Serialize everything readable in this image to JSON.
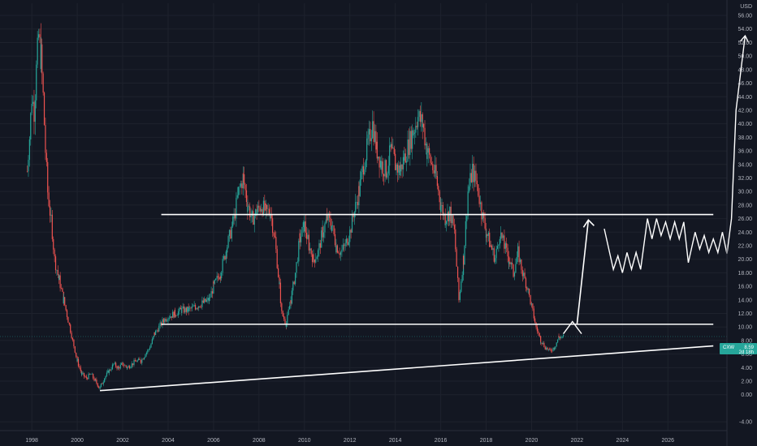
{
  "chart_data": {
    "type": "candlestick",
    "ticker": "CXW",
    "currency": "USD",
    "last_price": "8.59",
    "countdown": "2d 18h",
    "colors": {
      "up": "#26a69a",
      "down": "#ef5350",
      "background": "#131722",
      "grid": "#1e222d",
      "text": "#b2b5be",
      "drawing": "#ffffff",
      "tag": "#26a69a"
    },
    "grid": true,
    "xlim": [
      1996.6,
      2028.6
    ],
    "ylim": [
      -5.3,
      57.8
    ],
    "y_ticks": [
      "-4.00",
      "0.00",
      "2.00",
      "4.00",
      "6.00",
      "8.00",
      "10.00",
      "12.00",
      "14.00",
      "16.00",
      "18.00",
      "20.00",
      "22.00",
      "24.00",
      "26.00",
      "28.00",
      "30.00",
      "32.00",
      "34.00",
      "36.00",
      "38.00",
      "40.00",
      "42.00",
      "44.00",
      "46.00",
      "48.00",
      "50.00",
      "52.00",
      "54.00",
      "56.00"
    ],
    "x_ticks": [
      "1998",
      "2000",
      "2002",
      "2004",
      "2006",
      "2008",
      "2010",
      "2012",
      "2014",
      "2016",
      "2018",
      "2020",
      "2022",
      "2024",
      "2026"
    ],
    "price_path": [
      [
        1997.8,
        33.0
      ],
      [
        1997.9,
        38
      ],
      [
        1998.0,
        44
      ],
      [
        1998.1,
        42
      ],
      [
        1998.2,
        48
      ],
      [
        1998.3,
        53
      ],
      [
        1998.4,
        50
      ],
      [
        1998.5,
        44
      ],
      [
        1998.6,
        36
      ],
      [
        1998.7,
        30
      ],
      [
        1998.9,
        24
      ],
      [
        1999.0,
        20
      ],
      [
        1999.2,
        17
      ],
      [
        1999.4,
        14
      ],
      [
        1999.6,
        11
      ],
      [
        1999.8,
        8
      ],
      [
        2000.0,
        5
      ],
      [
        2000.2,
        3
      ],
      [
        2000.4,
        2.5
      ],
      [
        2000.6,
        3
      ],
      [
        2000.8,
        2
      ],
      [
        2001.0,
        1.0
      ],
      [
        2001.2,
        2.5
      ],
      [
        2001.4,
        3.5
      ],
      [
        2001.6,
        4.5
      ],
      [
        2001.8,
        4
      ],
      [
        2002.0,
        4.5
      ],
      [
        2002.2,
        4
      ],
      [
        2002.4,
        4.5
      ],
      [
        2002.6,
        5
      ],
      [
        2002.8,
        5
      ],
      [
        2003.0,
        6
      ],
      [
        2003.2,
        7
      ],
      [
        2003.4,
        9
      ],
      [
        2003.6,
        10
      ],
      [
        2003.8,
        11
      ],
      [
        2004.0,
        11.5
      ],
      [
        2004.3,
        12
      ],
      [
        2004.6,
        12.5
      ],
      [
        2004.9,
        12.5
      ],
      [
        2005.2,
        13
      ],
      [
        2005.5,
        13.5
      ],
      [
        2005.8,
        14
      ],
      [
        2006.0,
        16
      ],
      [
        2006.3,
        18
      ],
      [
        2006.6,
        22
      ],
      [
        2006.9,
        26
      ],
      [
        2007.1,
        30
      ],
      [
        2007.3,
        32
      ],
      [
        2007.5,
        28
      ],
      [
        2007.7,
        26
      ],
      [
        2007.9,
        27
      ],
      [
        2008.1,
        28
      ],
      [
        2008.3,
        27
      ],
      [
        2008.5,
        27
      ],
      [
        2008.7,
        23
      ],
      [
        2008.9,
        16
      ],
      [
        2009.0,
        12
      ],
      [
        2009.2,
        10.5
      ],
      [
        2009.4,
        14
      ],
      [
        2009.6,
        18
      ],
      [
        2009.8,
        23
      ],
      [
        2010.0,
        25
      ],
      [
        2010.2,
        22
      ],
      [
        2010.4,
        20
      ],
      [
        2010.6,
        21
      ],
      [
        2010.8,
        24
      ],
      [
        2011.0,
        26
      ],
      [
        2011.2,
        25
      ],
      [
        2011.4,
        22
      ],
      [
        2011.6,
        21
      ],
      [
        2011.8,
        22
      ],
      [
        2012.0,
        24
      ],
      [
        2012.2,
        27
      ],
      [
        2012.4,
        30
      ],
      [
        2012.6,
        34
      ],
      [
        2012.8,
        37
      ],
      [
        2013.0,
        40
      ],
      [
        2013.2,
        36
      ],
      [
        2013.4,
        34
      ],
      [
        2013.6,
        33
      ],
      [
        2013.8,
        36
      ],
      [
        2014.0,
        34
      ],
      [
        2014.2,
        33
      ],
      [
        2014.4,
        35
      ],
      [
        2014.6,
        37
      ],
      [
        2014.8,
        39
      ],
      [
        2015.0,
        41
      ],
      [
        2015.2,
        40
      ],
      [
        2015.4,
        36
      ],
      [
        2015.6,
        34
      ],
      [
        2015.8,
        32
      ],
      [
        2016.0,
        28
      ],
      [
        2016.2,
        26
      ],
      [
        2016.4,
        27
      ],
      [
        2016.6,
        24
      ],
      [
        2016.8,
        14
      ],
      [
        2017.0,
        20
      ],
      [
        2017.2,
        30
      ],
      [
        2017.4,
        33
      ],
      [
        2017.6,
        31
      ],
      [
        2017.8,
        27
      ],
      [
        2018.0,
        24
      ],
      [
        2018.2,
        22
      ],
      [
        2018.4,
        20
      ],
      [
        2018.6,
        24
      ],
      [
        2018.8,
        22
      ],
      [
        2019.0,
        20
      ],
      [
        2019.2,
        18
      ],
      [
        2019.4,
        21
      ],
      [
        2019.6,
        18
      ],
      [
        2019.8,
        16
      ],
      [
        2020.0,
        13
      ],
      [
        2020.2,
        10
      ],
      [
        2020.4,
        8
      ],
      [
        2020.6,
        7
      ],
      [
        2020.8,
        6.5
      ],
      [
        2021.0,
        7
      ],
      [
        2021.2,
        8.5
      ],
      [
        2021.4,
        8.59
      ]
    ],
    "drawings": {
      "resistance": [
        [
          2003.7,
          26.6
        ],
        [
          2028.0,
          26.6
        ]
      ],
      "support": [
        [
          2003.7,
          10.4
        ],
        [
          2028.0,
          10.4
        ]
      ],
      "trendline": [
        [
          2001.0,
          0.6
        ],
        [
          2028.0,
          7.2
        ]
      ],
      "small_arrow": [
        [
          2021.4,
          9.0
        ],
        [
          2021.8,
          10.8
        ],
        [
          2022.2,
          9.0
        ]
      ],
      "big_arrow": [
        [
          2022.0,
          10.4
        ],
        [
          2022.5,
          25.8
        ]
      ],
      "projection": [
        [
          2023.2,
          24.5
        ],
        [
          2023.6,
          18.5
        ],
        [
          2023.8,
          20.5
        ],
        [
          2024.0,
          18
        ],
        [
          2024.2,
          21
        ],
        [
          2024.4,
          18.5
        ],
        [
          2024.6,
          21
        ],
        [
          2024.8,
          18.5
        ],
        [
          2025.1,
          26
        ],
        [
          2025.3,
          23
        ],
        [
          2025.5,
          26
        ],
        [
          2025.7,
          23.5
        ],
        [
          2025.9,
          25.5
        ],
        [
          2026.1,
          23
        ],
        [
          2026.3,
          25.5
        ],
        [
          2026.5,
          23
        ],
        [
          2026.7,
          25.5
        ],
        [
          2026.9,
          19.5
        ],
        [
          2027.2,
          24
        ],
        [
          2027.4,
          21.5
        ],
        [
          2027.6,
          23.5
        ],
        [
          2027.8,
          21
        ],
        [
          2028.0,
          23
        ],
        [
          2028.2,
          21
        ],
        [
          2028.4,
          24
        ],
        [
          2028.6,
          20.8
        ],
        [
          2028.8,
          26
        ],
        [
          2029.0,
          42
        ],
        [
          2029.4,
          53
        ]
      ]
    }
  }
}
